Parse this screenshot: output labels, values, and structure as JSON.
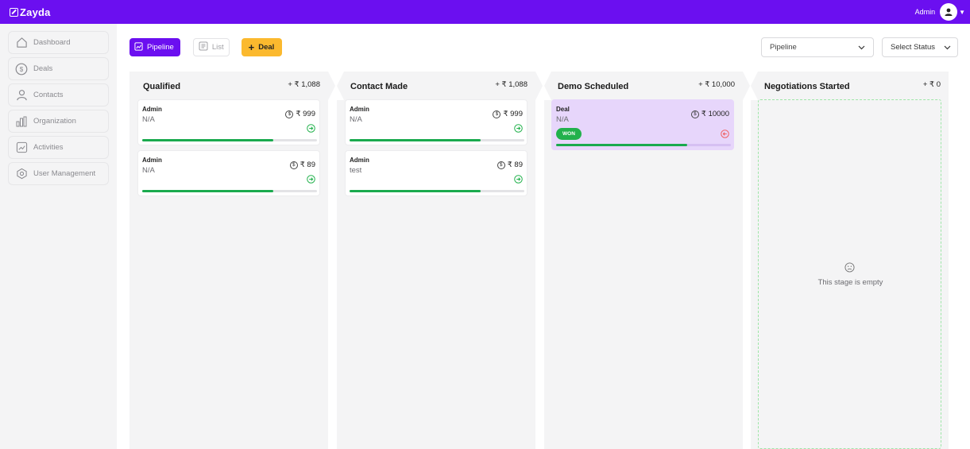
{
  "header": {
    "brand": "Zayda",
    "user_name": "Admin"
  },
  "sidebar": {
    "items": [
      {
        "label": "Dashboard",
        "icon": "home-icon"
      },
      {
        "label": "Deals",
        "icon": "dollar-icon"
      },
      {
        "label": "Contacts",
        "icon": "person-icon"
      },
      {
        "label": "Organization",
        "icon": "bar-chart-icon"
      },
      {
        "label": "Activities",
        "icon": "trend-icon"
      },
      {
        "label": "User Management",
        "icon": "hexagon-icon"
      }
    ]
  },
  "toolbar": {
    "pipeline_label": "Pipeline",
    "list_label": "List",
    "deal_label": "Deal",
    "pipeline_select": "Pipeline",
    "status_select": "Select Status"
  },
  "colors": {
    "accent": "#6b0ff0",
    "deal_button": "#fbb92e",
    "progress": "#1aaa4e",
    "won_card": "#e7d6fb"
  },
  "stages": [
    {
      "title": "Qualified",
      "total": "+ ₹ 1,088",
      "cards": [
        {
          "owner": "Admin",
          "sub": "N/A",
          "amount": "₹ 999",
          "progress": 0.75
        },
        {
          "owner": "Admin",
          "sub": "N/A",
          "amount": "₹ 89",
          "progress": 0.75
        }
      ]
    },
    {
      "title": "Contact Made",
      "total": "+ ₹ 1,088",
      "cards": [
        {
          "owner": "Admin",
          "sub": "N/A",
          "amount": "₹ 999",
          "progress": 0.75
        },
        {
          "owner": "Admin",
          "sub": "test",
          "amount": "₹ 89",
          "progress": 0.75
        }
      ]
    },
    {
      "title": "Demo Scheduled",
      "total": "+ ₹ 10,000",
      "cards": [
        {
          "owner": "Deal",
          "sub": "N/A",
          "amount": "₹ 10000",
          "badge": "WON",
          "progress": 0.75
        }
      ]
    },
    {
      "title": "Negotiations Started",
      "total": "+ ₹ 0",
      "empty_text": "This stage is empty"
    }
  ]
}
